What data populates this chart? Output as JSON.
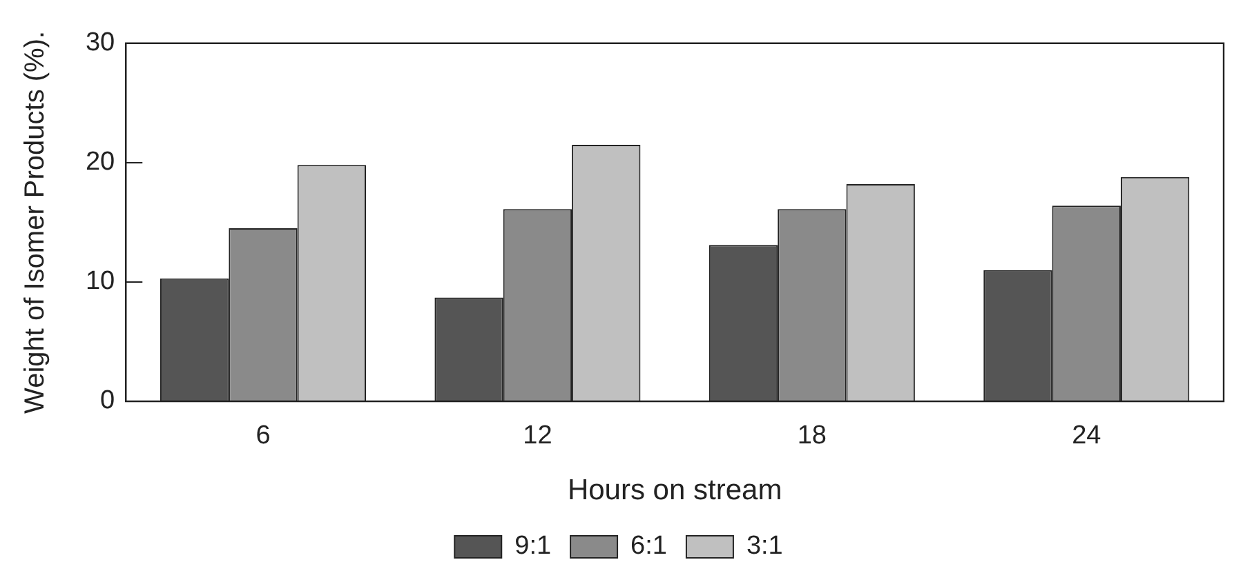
{
  "chart_data": {
    "type": "bar",
    "xlabel": "Hours on stream",
    "ylabel": "Weight of Isomer Products (%).",
    "categories": [
      "6",
      "12",
      "18",
      "24"
    ],
    "series": [
      {
        "name": "9:1",
        "color": "#555555",
        "values": [
          10.3,
          8.7,
          13.1,
          11.0
        ]
      },
      {
        "name": "6:1",
        "color": "#8a8a8a",
        "values": [
          14.5,
          16.1,
          16.1,
          16.4
        ]
      },
      {
        "name": "3:1",
        "color": "#c0c0c0",
        "values": [
          19.8,
          21.5,
          18.2,
          18.8
        ]
      }
    ],
    "ylim": [
      0,
      30
    ],
    "yticks": [
      0,
      10,
      20,
      30
    ],
    "grid": false,
    "legend": "bottom"
  }
}
